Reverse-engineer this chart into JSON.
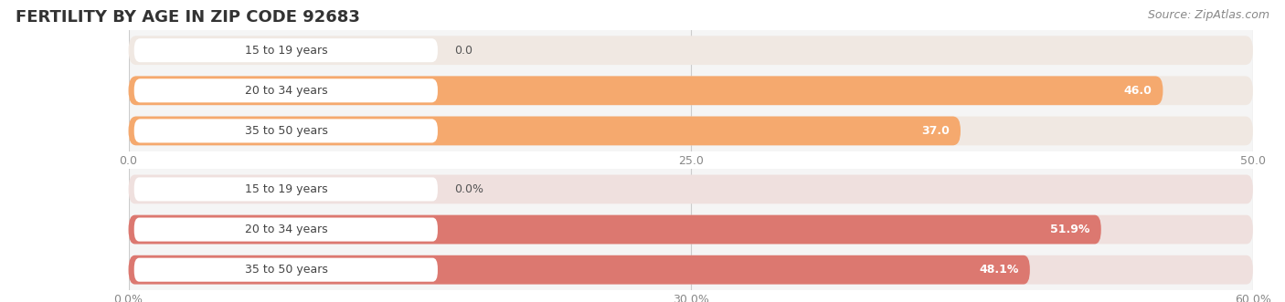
{
  "title": "FERTILITY BY AGE IN ZIP CODE 92683",
  "source": "Source: ZipAtlas.com",
  "chart1": {
    "categories": [
      "15 to 19 years",
      "20 to 34 years",
      "35 to 50 years"
    ],
    "values": [
      0.0,
      46.0,
      37.0
    ],
    "xlim": [
      0,
      50
    ],
    "xticks": [
      0.0,
      25.0,
      50.0
    ],
    "xtick_labels": [
      "0.0",
      "25.0",
      "50.0"
    ],
    "bar_color": "#F5A96E",
    "bar_bg_color": "#F0E8E2",
    "label_bg_color": "#FFFFFF",
    "label_inside_color": "#FFFFFF",
    "label_outside_color": "#888888"
  },
  "chart2": {
    "categories": [
      "15 to 19 years",
      "20 to 34 years",
      "35 to 50 years"
    ],
    "values": [
      0.0,
      51.9,
      48.1
    ],
    "xlim": [
      0,
      60
    ],
    "xticks": [
      0.0,
      30.0,
      60.0
    ],
    "xtick_labels": [
      "0.0%",
      "30.0%",
      "60.0%"
    ],
    "bar_color": "#DC7870",
    "bar_bg_color": "#EFE0DE",
    "label_bg_color": "#FFFFFF",
    "label_inside_color": "#FFFFFF",
    "label_outside_color": "#888888"
  },
  "bg_color": "#FFFFFF",
  "plot_bg_color": "#F5F5F5",
  "title_fontsize": 13,
  "source_fontsize": 9,
  "category_fontsize": 9,
  "value_fontsize": 9,
  "tick_fontsize": 9
}
